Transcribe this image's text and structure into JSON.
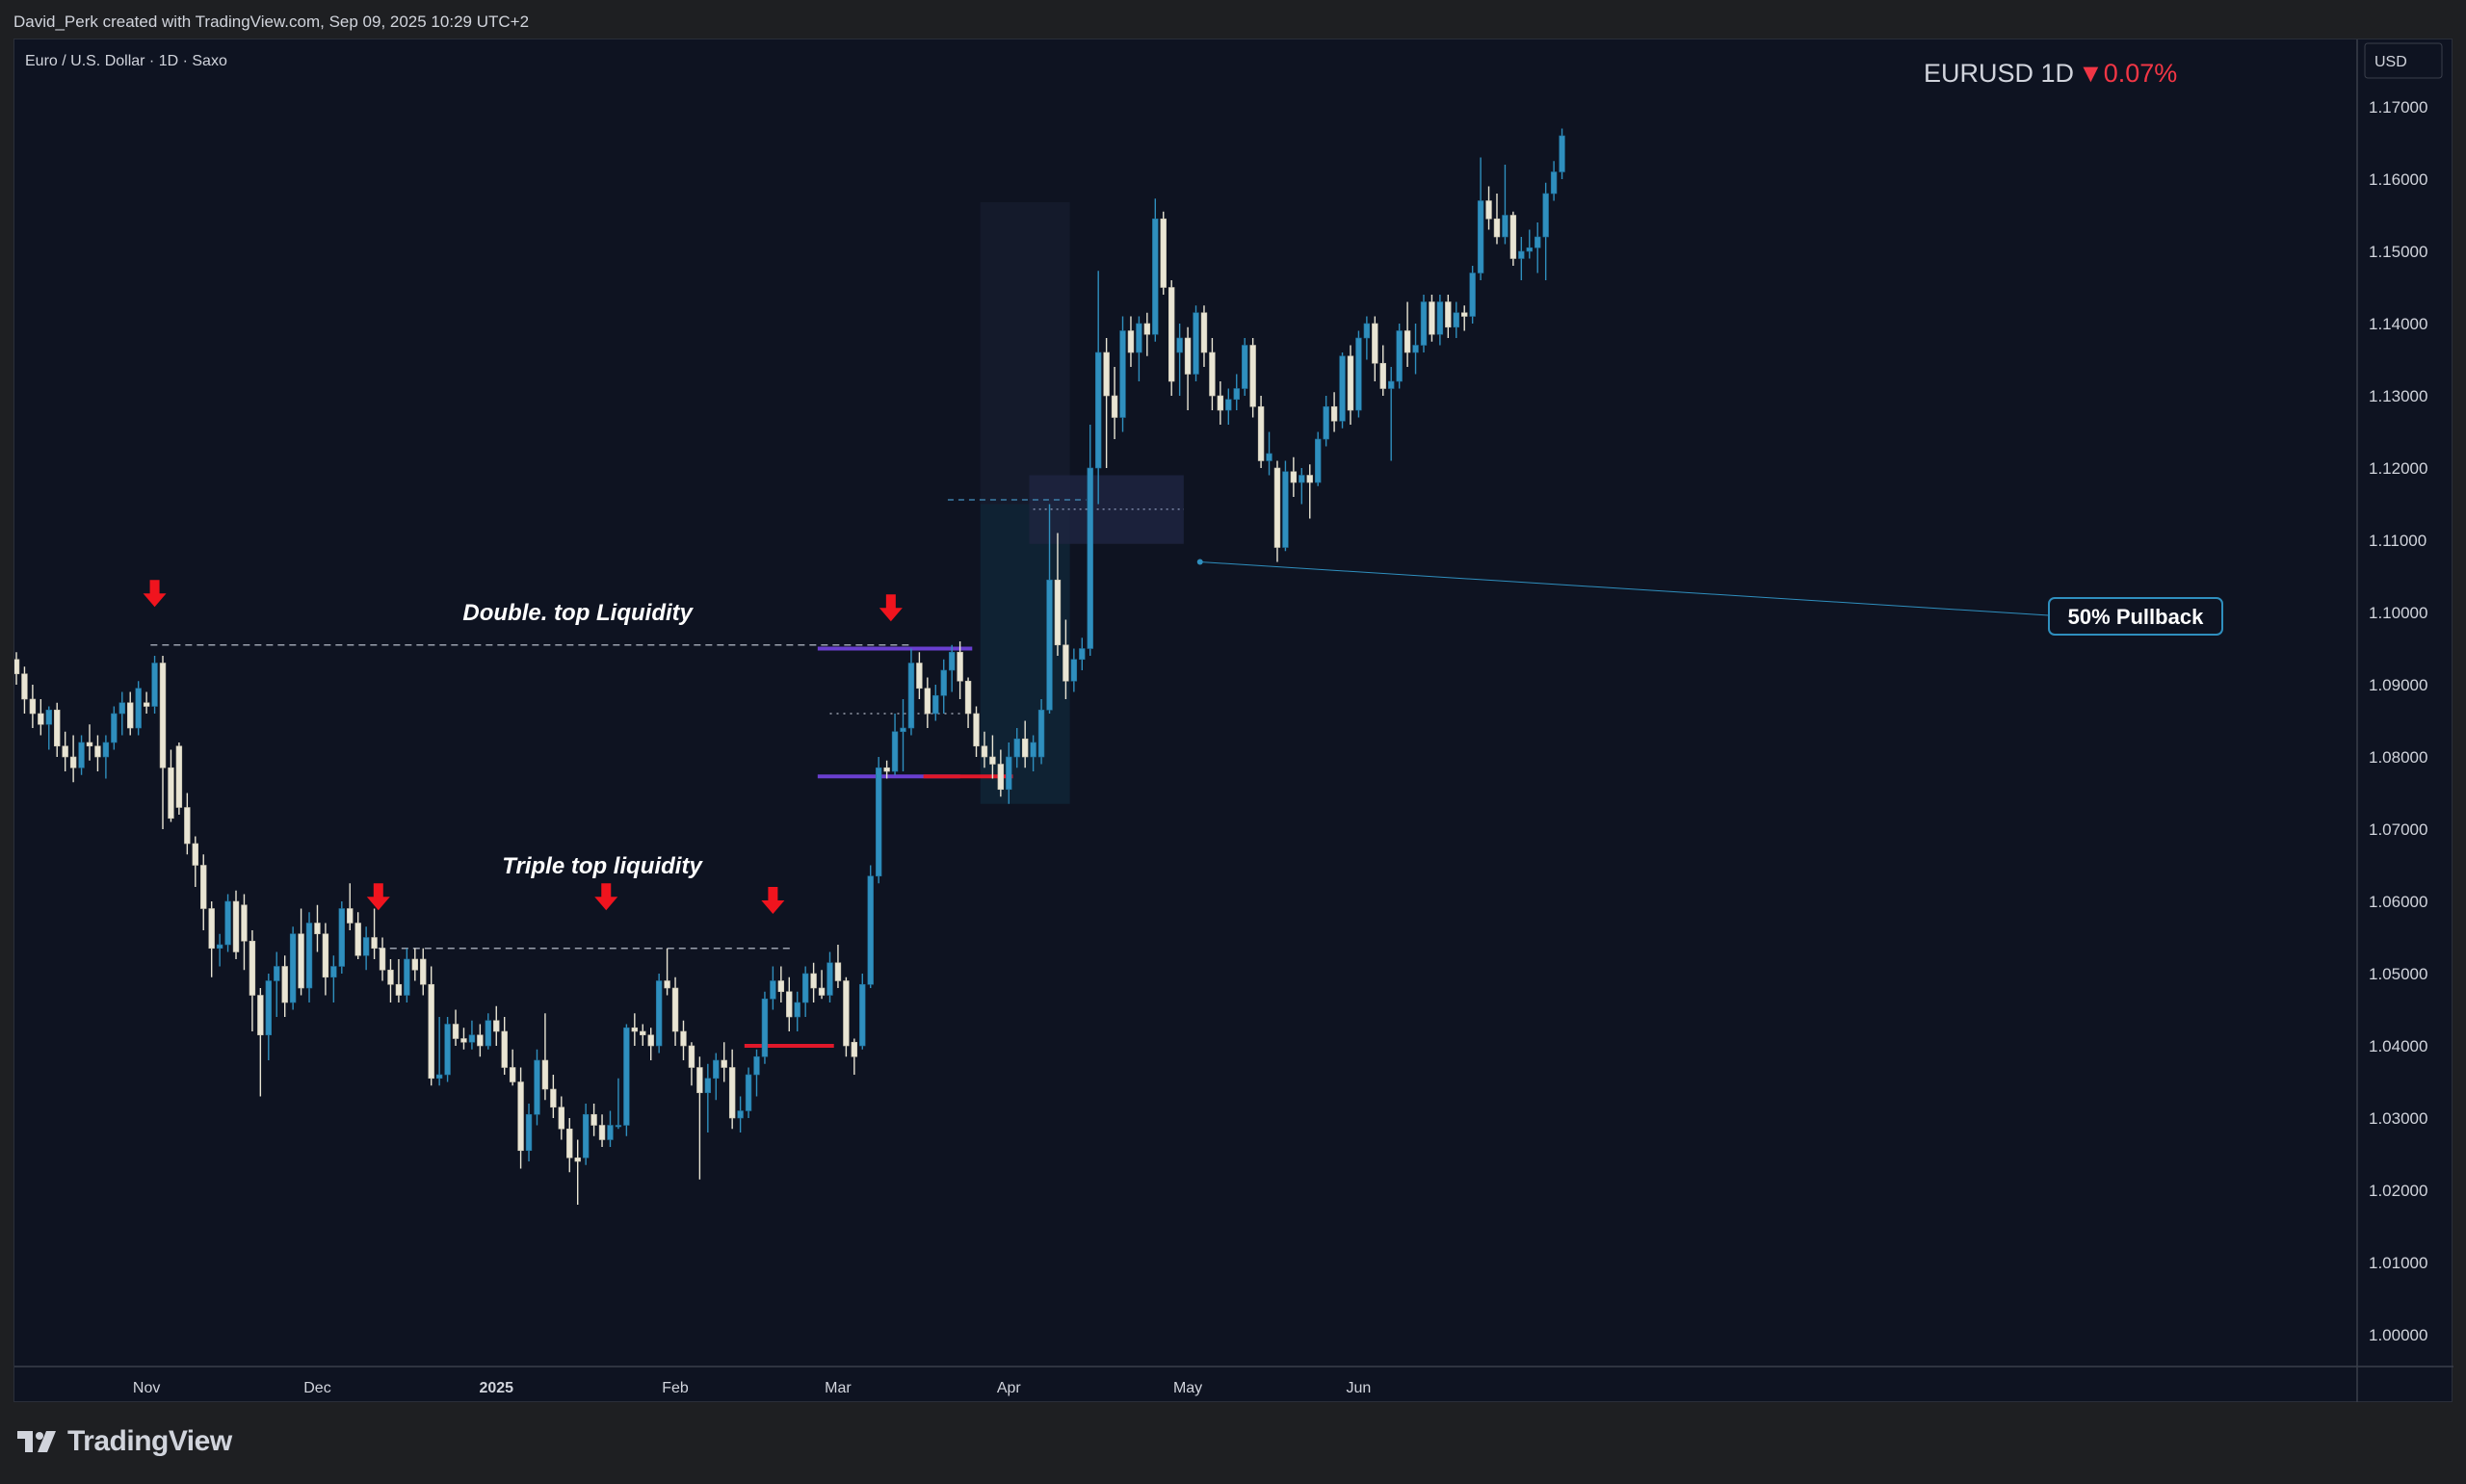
{
  "header": {
    "credit": "David_Perk created with TradingView.com, Sep 09, 2025 10:29 UTC+2"
  },
  "symbol": {
    "description": "Euro / U.S. Dollar · 1D · Saxo",
    "ticker_tf": "EURUSD 1D",
    "change": "▼0.07%",
    "currency": "USD"
  },
  "colors": {
    "background": "#0e1321",
    "bull": "#2f8fbe",
    "bear": "#e9e5d4",
    "arrow": "#f0141e",
    "red_line": "#e0182a",
    "purple_line": "#6a3fd0",
    "callout": "#2f8fbe",
    "change_red": "#f23645"
  },
  "footer": {
    "brand": "TradingView"
  },
  "chart_data": {
    "type": "candlestick",
    "symbol": "EURUSD",
    "timeframe": "1D",
    "ylim": [
      0.992,
      1.1725
    ],
    "y_ticks": [
      "1.00000",
      "1.01000",
      "1.02000",
      "1.03000",
      "1.04000",
      "1.05000",
      "1.06000",
      "1.07000",
      "1.08000",
      "1.09000",
      "1.10000",
      "1.11000",
      "1.12000",
      "1.13000",
      "1.14000",
      "1.15000",
      "1.16000",
      "1.17000"
    ],
    "x_ticks": [
      {
        "label": "Nov",
        "bar": 16,
        "bold": false
      },
      {
        "label": "Dec",
        "bar": 37,
        "bold": false
      },
      {
        "label": "2025",
        "bar": 59,
        "bold": true
      },
      {
        "label": "Feb",
        "bar": 81,
        "bold": false
      },
      {
        "label": "Mar",
        "bar": 101,
        "bold": false
      },
      {
        "label": "Apr",
        "bar": 122,
        "bold": false
      },
      {
        "label": "May",
        "bar": 144,
        "bold": false
      },
      {
        "label": "Jun",
        "bar": 165,
        "bold": false
      }
    ],
    "candles": [
      [
        1.0935,
        1.0945,
        1.09,
        1.0915
      ],
      [
        1.0915,
        1.0925,
        1.086,
        1.088
      ],
      [
        1.088,
        1.09,
        1.084,
        1.086
      ],
      [
        1.086,
        1.088,
        1.083,
        1.0845
      ],
      [
        1.0845,
        1.087,
        1.081,
        1.0865
      ],
      [
        1.0865,
        1.0875,
        1.08,
        1.0815
      ],
      [
        1.0815,
        1.0835,
        1.078,
        1.08
      ],
      [
        1.08,
        1.083,
        1.0765,
        1.0785
      ],
      [
        1.0785,
        1.083,
        1.0775,
        1.082
      ],
      [
        1.082,
        1.0845,
        1.0795,
        1.0815
      ],
      [
        1.0815,
        1.083,
        1.078,
        1.08
      ],
      [
        1.08,
        1.083,
        1.077,
        1.082
      ],
      [
        1.082,
        1.087,
        1.081,
        1.086
      ],
      [
        1.086,
        1.089,
        1.083,
        1.0875
      ],
      [
        1.0875,
        1.089,
        1.083,
        1.084
      ],
      [
        1.084,
        1.0905,
        1.083,
        1.0895
      ],
      [
        1.0875,
        1.089,
        1.086,
        1.087
      ],
      [
        1.087,
        1.094,
        1.086,
        1.093
      ],
      [
        1.093,
        1.094,
        1.07,
        1.0785
      ],
      [
        1.0785,
        1.081,
        1.071,
        1.0715
      ],
      [
        1.0815,
        1.082,
        1.072,
        1.073
      ],
      [
        1.073,
        1.075,
        1.0665,
        1.068
      ],
      [
        1.068,
        1.069,
        1.062,
        1.065
      ],
      [
        1.065,
        1.0665,
        1.056,
        1.059
      ],
      [
        1.059,
        1.06,
        1.0495,
        1.0535
      ],
      [
        1.0535,
        1.0555,
        1.051,
        1.054
      ],
      [
        1.054,
        1.061,
        1.053,
        1.06
      ],
      [
        1.06,
        1.0615,
        1.052,
        1.053
      ],
      [
        1.0595,
        1.061,
        1.0505,
        1.0545
      ],
      [
        1.0545,
        1.056,
        1.042,
        1.047
      ],
      [
        1.047,
        1.048,
        1.033,
        1.0415
      ],
      [
        1.0415,
        1.05,
        1.038,
        1.049
      ],
      [
        1.049,
        1.053,
        1.044,
        1.051
      ],
      [
        1.051,
        1.0525,
        1.044,
        1.046
      ],
      [
        1.046,
        1.0565,
        1.045,
        1.0555
      ],
      [
        1.0555,
        1.059,
        1.047,
        1.048
      ],
      [
        1.048,
        1.0585,
        1.046,
        1.057
      ],
      [
        1.057,
        1.0595,
        1.053,
        1.0555
      ],
      [
        1.0555,
        1.057,
        1.047,
        1.0495
      ],
      [
        1.0495,
        1.0525,
        1.046,
        1.051
      ],
      [
        1.051,
        1.06,
        1.05,
        1.059
      ],
      [
        1.059,
        1.0625,
        1.056,
        1.057
      ],
      [
        1.057,
        1.0585,
        1.052,
        1.0525
      ],
      [
        1.0525,
        1.0565,
        1.0505,
        1.055
      ],
      [
        1.055,
        1.059,
        1.052,
        1.0535
      ],
      [
        1.0535,
        1.055,
        1.049,
        1.0505
      ],
      [
        1.0505,
        1.052,
        1.046,
        1.0485
      ],
      [
        1.0485,
        1.052,
        1.046,
        1.047
      ],
      [
        1.047,
        1.0535,
        1.046,
        1.052
      ],
      [
        1.052,
        1.0535,
        1.049,
        1.0505
      ],
      [
        1.052,
        1.0535,
        1.047,
        1.0485
      ],
      [
        1.0485,
        1.051,
        1.0345,
        1.0355
      ],
      [
        1.0355,
        1.044,
        1.0345,
        1.036
      ],
      [
        1.036,
        1.044,
        1.035,
        1.043
      ],
      [
        1.043,
        1.045,
        1.04,
        1.041
      ],
      [
        1.041,
        1.0425,
        1.0395,
        1.0405
      ],
      [
        1.0405,
        1.0435,
        1.0395,
        1.0415
      ],
      [
        1.0415,
        1.043,
        1.0385,
        1.04
      ],
      [
        1.04,
        1.0445,
        1.0395,
        1.0435
      ],
      [
        1.0435,
        1.0455,
        1.04,
        1.042
      ],
      [
        1.042,
        1.044,
        1.036,
        1.037
      ],
      [
        1.037,
        1.0395,
        1.0345,
        1.035
      ],
      [
        1.035,
        1.037,
        1.023,
        1.0255
      ],
      [
        1.0255,
        1.032,
        1.024,
        1.0305
      ],
      [
        1.0305,
        1.0395,
        1.029,
        1.038
      ],
      [
        1.038,
        1.0445,
        1.0325,
        1.034
      ],
      [
        1.034,
        1.036,
        1.03,
        1.0315
      ],
      [
        1.0315,
        1.033,
        1.027,
        1.0285
      ],
      [
        1.0285,
        1.03,
        1.0225,
        1.0245
      ],
      [
        1.0245,
        1.027,
        1.018,
        1.024
      ],
      [
        1.0245,
        1.032,
        1.0235,
        1.0305
      ],
      [
        1.0305,
        1.032,
        1.0275,
        1.029
      ],
      [
        1.029,
        1.0305,
        1.026,
        1.027
      ],
      [
        1.027,
        1.031,
        1.026,
        1.029
      ],
      [
        1.029,
        1.0355,
        1.0285,
        1.029
      ],
      [
        1.029,
        1.043,
        1.0275,
        1.0425
      ],
      [
        1.0425,
        1.0445,
        1.04,
        1.042
      ],
      [
        1.042,
        1.043,
        1.04,
        1.0415
      ],
      [
        1.0415,
        1.0425,
        1.038,
        1.04
      ],
      [
        1.04,
        1.05,
        1.039,
        1.049
      ],
      [
        1.049,
        1.0535,
        1.047,
        1.048
      ],
      [
        1.048,
        1.0495,
        1.04,
        1.042
      ],
      [
        1.042,
        1.0435,
        1.038,
        1.04
      ],
      [
        1.04,
        1.0405,
        1.0345,
        1.037
      ],
      [
        1.037,
        1.0385,
        1.0215,
        1.0335
      ],
      [
        1.0335,
        1.0375,
        1.028,
        1.0355
      ],
      [
        1.0355,
        1.039,
        1.0325,
        1.038
      ],
      [
        1.038,
        1.0405,
        1.035,
        1.037
      ],
      [
        1.037,
        1.0395,
        1.0285,
        1.03
      ],
      [
        1.03,
        1.033,
        1.028,
        1.031
      ],
      [
        1.031,
        1.037,
        1.03,
        1.036
      ],
      [
        1.036,
        1.0395,
        1.033,
        1.0385
      ],
      [
        1.0385,
        1.0475,
        1.0375,
        1.0465
      ],
      [
        1.0465,
        1.051,
        1.045,
        1.049
      ],
      [
        1.049,
        1.051,
        1.046,
        1.0475
      ],
      [
        1.0475,
        1.0495,
        1.042,
        1.044
      ],
      [
        1.044,
        1.0475,
        1.042,
        1.046
      ],
      [
        1.046,
        1.051,
        1.044,
        1.05
      ],
      [
        1.05,
        1.0515,
        1.046,
        1.048
      ],
      [
        1.048,
        1.0505,
        1.0465,
        1.047
      ],
      [
        1.047,
        1.053,
        1.046,
        1.0515
      ],
      [
        1.0515,
        1.054,
        1.048,
        1.049
      ],
      [
        1.049,
        1.0495,
        1.0385,
        1.04
      ],
      [
        1.0405,
        1.041,
        1.036,
        1.0385
      ],
      [
        1.04,
        1.05,
        1.0395,
        1.0485
      ],
      [
        1.0485,
        1.065,
        1.048,
        1.0635
      ],
      [
        1.0635,
        1.08,
        1.0625,
        1.0785
      ],
      [
        1.0785,
        1.0795,
        1.077,
        1.078
      ],
      [
        1.078,
        1.086,
        1.0775,
        1.0835
      ],
      [
        1.0835,
        1.088,
        1.078,
        1.084
      ],
      [
        1.084,
        1.095,
        1.083,
        1.093
      ],
      [
        1.093,
        1.0945,
        1.088,
        1.0895
      ],
      [
        1.0895,
        1.091,
        1.084,
        1.086
      ],
      [
        1.086,
        1.09,
        1.085,
        1.0885
      ],
      [
        1.0885,
        1.0935,
        1.086,
        1.092
      ],
      [
        1.092,
        1.0955,
        1.089,
        1.0945
      ],
      [
        1.0945,
        1.096,
        1.088,
        1.0905
      ],
      [
        1.0905,
        1.091,
        1.084,
        1.086
      ],
      [
        1.086,
        1.087,
        1.08,
        1.0815
      ],
      [
        1.0815,
        1.0835,
        1.0785,
        1.08
      ],
      [
        1.08,
        1.083,
        1.077,
        1.079
      ],
      [
        1.079,
        1.081,
        1.0745,
        1.0755
      ],
      [
        1.0755,
        1.082,
        1.0735,
        1.08
      ],
      [
        1.08,
        1.084,
        1.0785,
        1.0825
      ],
      [
        1.0825,
        1.085,
        1.0785,
        1.08
      ],
      [
        1.08,
        1.083,
        1.078,
        1.082
      ],
      [
        1.08,
        1.088,
        1.079,
        1.0865
      ],
      [
        1.0865,
        1.115,
        1.086,
        1.1045
      ],
      [
        1.1045,
        1.111,
        1.094,
        1.0955
      ],
      [
        1.0955,
        1.099,
        1.088,
        1.0905
      ],
      [
        1.0905,
        1.095,
        1.089,
        1.0935
      ],
      [
        1.0935,
        1.0965,
        1.092,
        1.095
      ],
      [
        1.095,
        1.126,
        1.094,
        1.12
      ],
      [
        1.12,
        1.1473,
        1.115,
        1.136
      ],
      [
        1.136,
        1.138,
        1.12,
        1.13
      ],
      [
        1.13,
        1.134,
        1.124,
        1.127
      ],
      [
        1.127,
        1.141,
        1.125,
        1.139
      ],
      [
        1.139,
        1.141,
        1.134,
        1.136
      ],
      [
        1.136,
        1.141,
        1.132,
        1.14
      ],
      [
        1.14,
        1.1415,
        1.1355,
        1.1385
      ],
      [
        1.1385,
        1.1573,
        1.1375,
        1.1545
      ],
      [
        1.1545,
        1.1555,
        1.144,
        1.145
      ],
      [
        1.145,
        1.146,
        1.13,
        1.132
      ],
      [
        1.136,
        1.14,
        1.13,
        1.138
      ],
      [
        1.138,
        1.1395,
        1.128,
        1.133
      ],
      [
        1.133,
        1.1425,
        1.132,
        1.1415
      ],
      [
        1.1415,
        1.1425,
        1.134,
        1.136
      ],
      [
        1.136,
        1.138,
        1.128,
        1.13
      ],
      [
        1.13,
        1.132,
        1.126,
        1.128
      ],
      [
        1.128,
        1.131,
        1.126,
        1.1295
      ],
      [
        1.1295,
        1.133,
        1.128,
        1.131
      ],
      [
        1.131,
        1.138,
        1.13,
        1.137
      ],
      [
        1.137,
        1.138,
        1.127,
        1.1285
      ],
      [
        1.1285,
        1.13,
        1.12,
        1.121
      ],
      [
        1.121,
        1.125,
        1.119,
        1.122
      ],
      [
        1.12,
        1.121,
        1.107,
        1.109
      ],
      [
        1.109,
        1.121,
        1.1085,
        1.1195
      ],
      [
        1.1195,
        1.1215,
        1.116,
        1.118
      ],
      [
        1.118,
        1.12,
        1.115,
        1.119
      ],
      [
        1.119,
        1.1205,
        1.113,
        1.118
      ],
      [
        1.118,
        1.125,
        1.1175,
        1.124
      ],
      [
        1.124,
        1.13,
        1.123,
        1.1285
      ],
      [
        1.1285,
        1.1305,
        1.125,
        1.1265
      ],
      [
        1.1265,
        1.136,
        1.1255,
        1.1355
      ],
      [
        1.1355,
        1.137,
        1.126,
        1.128
      ],
      [
        1.128,
        1.139,
        1.127,
        1.138
      ],
      [
        1.138,
        1.141,
        1.135,
        1.14
      ],
      [
        1.14,
        1.141,
        1.132,
        1.1345
      ],
      [
        1.1345,
        1.137,
        1.13,
        1.131
      ],
      [
        1.131,
        1.134,
        1.121,
        1.132
      ],
      [
        1.132,
        1.14,
        1.131,
        1.139
      ],
      [
        1.139,
        1.143,
        1.134,
        1.136
      ],
      [
        1.136,
        1.14,
        1.133,
        1.137
      ],
      [
        1.137,
        1.144,
        1.136,
        1.143
      ],
      [
        1.143,
        1.144,
        1.1375,
        1.1385
      ],
      [
        1.1385,
        1.144,
        1.137,
        1.143
      ],
      [
        1.143,
        1.144,
        1.138,
        1.1395
      ],
      [
        1.1395,
        1.143,
        1.138,
        1.1415
      ],
      [
        1.1415,
        1.1425,
        1.139,
        1.141
      ],
      [
        1.141,
        1.148,
        1.14,
        1.147
      ],
      [
        1.147,
        1.163,
        1.146,
        1.157
      ],
      [
        1.157,
        1.159,
        1.153,
        1.1545
      ],
      [
        1.1545,
        1.158,
        1.151,
        1.152
      ],
      [
        1.152,
        1.162,
        1.151,
        1.155
      ],
      [
        1.155,
        1.1555,
        1.148,
        1.149
      ],
      [
        1.149,
        1.152,
        1.146,
        1.15
      ],
      [
        1.15,
        1.153,
        1.149,
        1.1505
      ],
      [
        1.1505,
        1.154,
        1.147,
        1.152
      ],
      [
        1.152,
        1.1595,
        1.146,
        1.158
      ],
      [
        1.158,
        1.1625,
        1.157,
        1.161
      ],
      [
        1.161,
        1.167,
        1.16,
        1.166
      ]
    ],
    "annotations": {
      "double_top": {
        "label": "Double. top Liquidity",
        "level": 1.0955
      },
      "triple_top": {
        "label": "Triple top liquidity",
        "level": 1.0535
      },
      "pullback": {
        "label": "50% Pullback",
        "fib_level": 1.1143
      }
    }
  }
}
